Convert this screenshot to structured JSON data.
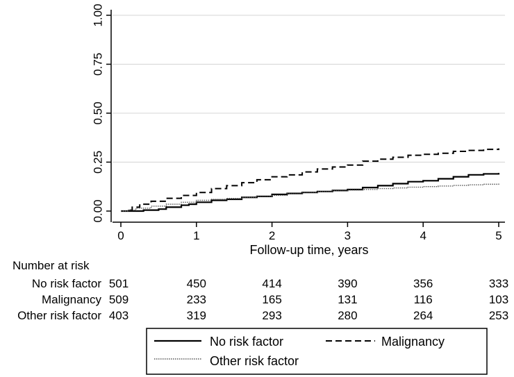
{
  "chart_data": {
    "type": "line",
    "xlabel": "Follow-up time, years",
    "ylabel": "",
    "xlim": [
      0,
      5
    ],
    "ylim": [
      0,
      1
    ],
    "x_ticks": [
      0,
      1,
      2,
      3,
      4,
      5
    ],
    "y_ticks": [
      "0.00",
      "0.25",
      "0.50",
      "0.75",
      "1.00"
    ],
    "grid": "horizontal",
    "series": [
      {
        "name": "No risk factor",
        "line_style": "solid",
        "x": [
          0,
          0.1,
          0.3,
          0.5,
          0.6,
          0.8,
          0.9,
          1.0,
          1.2,
          1.4,
          1.6,
          1.8,
          2.0,
          2.2,
          2.4,
          2.6,
          2.8,
          3.0,
          3.2,
          3.4,
          3.6,
          3.8,
          4.0,
          4.2,
          4.4,
          4.6,
          4.8,
          5.0
        ],
        "values": [
          0,
          0,
          0.005,
          0.01,
          0.02,
          0.03,
          0.035,
          0.045,
          0.055,
          0.06,
          0.07,
          0.075,
          0.085,
          0.09,
          0.095,
          0.1,
          0.105,
          0.11,
          0.12,
          0.13,
          0.14,
          0.15,
          0.155,
          0.165,
          0.175,
          0.185,
          0.19,
          0.195
        ]
      },
      {
        "name": "Malignancy",
        "line_style": "dashed",
        "x": [
          0,
          0.1,
          0.15,
          0.25,
          0.4,
          0.6,
          0.8,
          1.0,
          1.2,
          1.4,
          1.6,
          1.8,
          2.0,
          2.2,
          2.4,
          2.6,
          2.8,
          3.0,
          3.2,
          3.4,
          3.6,
          3.8,
          4.0,
          4.2,
          4.4,
          4.6,
          4.8,
          5.0
        ],
        "values": [
          0,
          0.005,
          0.02,
          0.035,
          0.05,
          0.065,
          0.08,
          0.095,
          0.115,
          0.13,
          0.145,
          0.16,
          0.175,
          0.185,
          0.2,
          0.215,
          0.225,
          0.235,
          0.255,
          0.265,
          0.275,
          0.285,
          0.29,
          0.295,
          0.305,
          0.31,
          0.315,
          0.32
        ]
      },
      {
        "name": "Other risk factor",
        "line_style": "dotted",
        "x": [
          0,
          0.1,
          0.2,
          0.4,
          0.6,
          0.8,
          1.0,
          1.2,
          1.4,
          1.6,
          1.8,
          2.0,
          2.2,
          2.4,
          2.6,
          2.8,
          3.0,
          3.2,
          3.4,
          3.6,
          3.8,
          4.0,
          4.2,
          4.4,
          4.6,
          4.8,
          5.0
        ],
        "values": [
          0,
          0.005,
          0.015,
          0.025,
          0.035,
          0.045,
          0.055,
          0.06,
          0.065,
          0.07,
          0.075,
          0.08,
          0.088,
          0.095,
          0.1,
          0.103,
          0.107,
          0.11,
          0.115,
          0.118,
          0.122,
          0.125,
          0.128,
          0.131,
          0.134,
          0.137,
          0.14
        ]
      }
    ],
    "risk_table": {
      "title": "Number at risk",
      "rows": [
        {
          "label": "No risk factor",
          "values": [
            "501",
            "450",
            "414",
            "390",
            "356",
            "333"
          ]
        },
        {
          "label": "Malignancy",
          "values": [
            "509",
            "233",
            "165",
            "131",
            "116",
            "103"
          ]
        },
        {
          "label": "Other risk factor",
          "values": [
            "403",
            "319",
            "293",
            "280",
            "264",
            "253"
          ]
        }
      ]
    },
    "legend": {
      "placement": "bottom",
      "entries": [
        "No risk factor",
        "Malignancy",
        "Other risk factor"
      ]
    }
  }
}
